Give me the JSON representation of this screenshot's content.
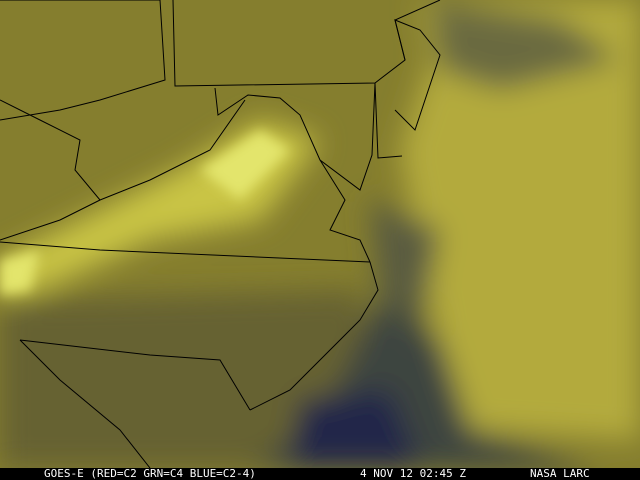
{
  "caption": {
    "satellite": "GOES-E (RED=C2 GRN=C4 BLUE=C2-4)",
    "datetime": "4 NOV 12 02:45 Z",
    "credit": "NASA LARC"
  },
  "colors": {
    "land": "#7f7a2c",
    "cloud_yellow": "#c8c23e",
    "cloud_bright": "#e6e86a",
    "ocean_dark": "#2a2c4a",
    "ocean_mid": "#4e5546",
    "border": "#000000"
  }
}
